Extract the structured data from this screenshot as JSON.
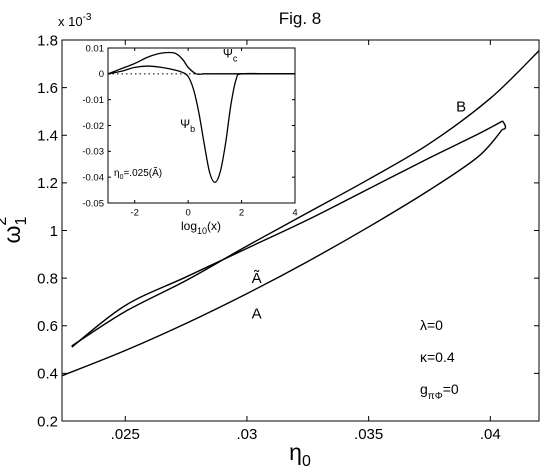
{
  "figure": {
    "title": "Fig. 8",
    "y_multiplier": "x 10",
    "y_multiplier_exp": "-3"
  },
  "chart_data": [
    {
      "id": "main",
      "type": "line",
      "xlabel": {
        "base": "η",
        "sub": "0"
      },
      "ylabel": {
        "base": "ω",
        "sub": "1",
        "sup": "2"
      },
      "xlim": [
        0.0224,
        0.042
      ],
      "ylim": [
        0.2,
        1.8
      ],
      "xticks": [
        0.025,
        0.03,
        0.035,
        0.04
      ],
      "xtick_labels": [
        ".025",
        ".03",
        ".035",
        ".04"
      ],
      "yticks": [
        0.2,
        0.4,
        0.6,
        0.8,
        1.0,
        1.2,
        1.4,
        1.6,
        1.8
      ],
      "ytick_labels": [
        "0.2",
        "0.4",
        "0.6",
        "0.8",
        "1",
        "1.2",
        "1.4",
        "1.6",
        "1.8"
      ],
      "grid": false,
      "series": [
        {
          "name": "A",
          "x": [
            0.0224,
            0.025,
            0.0275,
            0.03,
            0.0325,
            0.035,
            0.0375,
            0.0395,
            0.0405
          ],
          "y": [
            0.39,
            0.496,
            0.61,
            0.735,
            0.87,
            1.015,
            1.17,
            1.31,
            1.425
          ]
        },
        {
          "name": "Ã",
          "x": [
            0.0405,
            0.0395,
            0.0375,
            0.035,
            0.0325,
            0.03,
            0.0275,
            0.025,
            0.0228
          ],
          "y": [
            1.46,
            1.405,
            1.305,
            1.175,
            1.045,
            0.925,
            0.805,
            0.685,
            0.51
          ]
        },
        {
          "name": "B",
          "x": [
            0.0228,
            0.025,
            0.0275,
            0.03,
            0.0325,
            0.035,
            0.0375,
            0.04,
            0.042
          ],
          "y": [
            0.515,
            0.66,
            0.79,
            0.935,
            1.075,
            1.215,
            1.365,
            1.555,
            1.755
          ]
        }
      ],
      "annotations": [
        {
          "text": "B",
          "x": 0.0388,
          "y": 1.5
        },
        {
          "text": "Ã",
          "x": 0.0304,
          "y": 0.78
        },
        {
          "text": "A",
          "x": 0.0304,
          "y": 0.63
        }
      ],
      "parameter_labels": [
        {
          "base": "λ=0",
          "sub": ""
        },
        {
          "base": "κ=0.4",
          "sub": ""
        },
        {
          "base": "g",
          "sub": "πΦ",
          "rest": "=0"
        }
      ]
    },
    {
      "id": "inset",
      "type": "line",
      "xlabel": {
        "pre": "log",
        "sub": "10",
        "post": "(x)"
      },
      "xlim": [
        -3,
        4
      ],
      "ylim": [
        -0.05,
        0.01
      ],
      "xticks": [
        -2,
        0,
        2,
        4
      ],
      "xtick_labels": [
        "-2",
        "0",
        "2",
        "4"
      ],
      "yticks": [
        0.01,
        0,
        -0.01,
        -0.02,
        -0.03,
        -0.04,
        -0.05
      ],
      "ytick_labels": [
        "0.01",
        "0",
        "-0.01",
        "-0.02",
        "-0.03",
        "-0.04",
        "-0.05"
      ],
      "grid": false,
      "series": [
        {
          "name": "Ψc",
          "x": [
            -3,
            -2.5,
            -2.0,
            -1.5,
            -1.0,
            -0.5,
            -0.2,
            0.0,
            0.3,
            0.6,
            1.0,
            2.0,
            3.0,
            4.0
          ],
          "y": [
            0.0,
            0.002,
            0.004,
            0.0065,
            0.008,
            0.008,
            0.0055,
            0.0025,
            0.0,
            0.0,
            0.0,
            0.0,
            0.0,
            0.0
          ]
        },
        {
          "name": "Ψb",
          "x": [
            -3,
            -2.5,
            -2.0,
            -1.5,
            -1.0,
            -0.5,
            -0.2,
            0.0,
            0.2,
            0.4,
            0.6,
            0.8,
            1.0,
            1.2,
            1.4,
            1.6,
            1.8,
            2.0,
            3.0,
            4.0
          ],
          "y": [
            0.0,
            0.001,
            0.0025,
            0.003,
            0.0025,
            0.0015,
            0.0005,
            -0.001,
            -0.006,
            -0.015,
            -0.027,
            -0.038,
            -0.042,
            -0.038,
            -0.027,
            -0.012,
            -0.002,
            0.0,
            0.0,
            0.0
          ]
        }
      ],
      "reference_line": {
        "y": 0,
        "style": "dotted"
      },
      "annotations": [
        {
          "base": "Ψ",
          "sub": "c",
          "x": 1.3,
          "y": 0.0063
        },
        {
          "base": "Ψ",
          "sub": "b",
          "x": -0.3,
          "y": -0.021
        }
      ],
      "note": {
        "base": "η",
        "sub": "0",
        "rest": "=.025(Ã)"
      }
    }
  ]
}
